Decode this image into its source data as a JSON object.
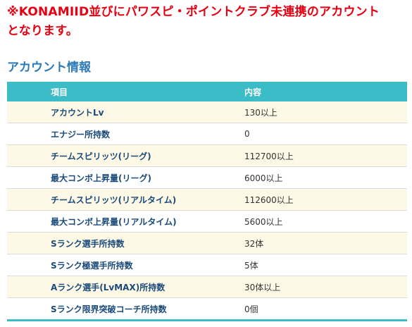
{
  "notice": {
    "line1": "※KONAMIID並びにパワスピ・ポイントクラブ未連携のアカウント",
    "line2": "となります。"
  },
  "section": {
    "title": "アカウント情報"
  },
  "table": {
    "headers": {
      "item": "項目",
      "value": "内容"
    },
    "rows": [
      {
        "item": "アカウントLv",
        "value": "130以上"
      },
      {
        "item": "エナジー所持数",
        "value": "0"
      },
      {
        "item": "チームスピリッツ(リーグ)",
        "value": "112700以上"
      },
      {
        "item": "最大コンボ上昇量(リーグ)",
        "value": "6000以上"
      },
      {
        "item": "チームスピリッツ(リアルタイム)",
        "value": "112600以上"
      },
      {
        "item": "最大コンボ上昇量(リアルタイム)",
        "value": "5600以上"
      },
      {
        "item": "Sランク選手所持数",
        "value": "32体"
      },
      {
        "item": "Sランク極選手所持数",
        "value": "5体"
      },
      {
        "item": "Aランク選手(LvMAX)所持数",
        "value": "30体以上"
      },
      {
        "item": "Sランク限界突破コーチ所持数",
        "value": "0個"
      }
    ]
  },
  "colors": {
    "notice": "#e60012",
    "title": "#2d7ab8",
    "header_bg": "#3cbcc7",
    "row_alt_bg": "#fdf9e6"
  }
}
